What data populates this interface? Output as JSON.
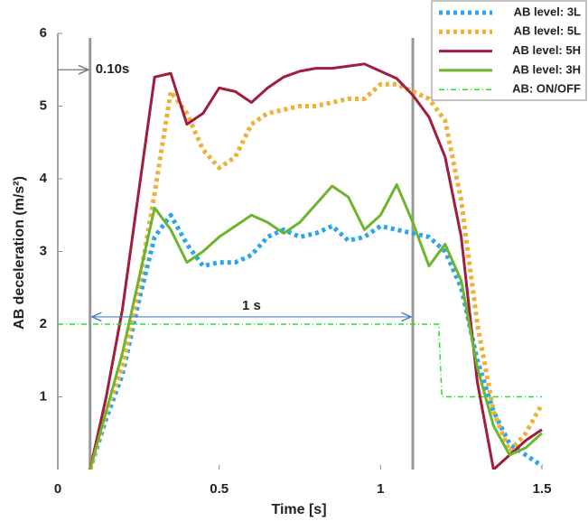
{
  "chart_data": {
    "type": "line",
    "xlabel": "Time [s]",
    "ylabel": "AB deceleration (m/s²)",
    "xlim": [
      0,
      1.5
    ],
    "ylim": [
      0,
      6
    ],
    "xticks": [
      0,
      0.5,
      1,
      1.5
    ],
    "yticks": [
      1,
      2,
      3,
      4,
      5,
      6
    ],
    "x": [
      0,
      0.05,
      0.1,
      0.15,
      0.2,
      0.25,
      0.3,
      0.35,
      0.4,
      0.45,
      0.5,
      0.55,
      0.6,
      0.65,
      0.7,
      0.75,
      0.8,
      0.85,
      0.9,
      0.95,
      1,
      1.05,
      1.1,
      1.15,
      1.2,
      1.25,
      1.3,
      1.35,
      1.4,
      1.45,
      1.5
    ],
    "series": [
      {
        "name": "AB level: 3L",
        "color": "#2ea5ea",
        "style": "dotted",
        "values": [
          0.1,
          null,
          0,
          0.7,
          1.3,
          2.3,
          3.2,
          3.5,
          3.1,
          2.8,
          2.85,
          2.85,
          2.95,
          3.2,
          3.3,
          3.2,
          3.25,
          3.35,
          3.15,
          3.2,
          3.35,
          3.3,
          3.25,
          3.2,
          3.0,
          2.5,
          1.5,
          0.8,
          0.35,
          0.2,
          0.05
        ]
      },
      {
        "name": "AB level: 5L",
        "color": "#eeb035",
        "style": "dotted",
        "values": [
          null,
          null,
          0,
          0.8,
          1.4,
          2.5,
          3.8,
          5.2,
          4.9,
          4.4,
          4.15,
          4.3,
          4.75,
          4.9,
          4.95,
          5.0,
          5.0,
          5.05,
          5.1,
          5.1,
          5.3,
          5.3,
          5.2,
          5.1,
          4.8,
          3.7,
          2.0,
          0.8,
          0.25,
          0.5,
          0.9
        ]
      },
      {
        "name": "AB level: 5H",
        "color": "#a11d3d",
        "style": "solid",
        "values": [
          null,
          null,
          0,
          1.0,
          2.2,
          3.8,
          5.4,
          5.45,
          4.75,
          4.9,
          5.25,
          5.2,
          5.05,
          5.25,
          5.4,
          5.48,
          5.52,
          5.52,
          5.55,
          5.58,
          5.48,
          5.38,
          5.15,
          4.85,
          4.3,
          3.2,
          1.2,
          0,
          0.2,
          0.4,
          0.55
        ]
      },
      {
        "name": "AB level: 3H",
        "color": "#6db52f",
        "style": "solid",
        "values": [
          null,
          null,
          0,
          0.8,
          1.6,
          2.6,
          3.6,
          3.3,
          2.85,
          3.0,
          3.2,
          3.35,
          3.5,
          3.4,
          3.25,
          3.4,
          3.65,
          3.9,
          3.75,
          3.3,
          3.5,
          3.92,
          3.4,
          2.8,
          3.1,
          2.6,
          1.4,
          0.6,
          0.2,
          0.3,
          0.5
        ]
      },
      {
        "name": "AB: ON/OFF",
        "color": "#22e622",
        "style": "dashdot",
        "x": [
          0,
          1.18,
          1.19,
          1.5
        ],
        "values": [
          2,
          2,
          1,
          1
        ]
      }
    ],
    "vlines": [
      0.1,
      1.1
    ],
    "annotations": [
      {
        "text": "0.10s",
        "x": 0.1,
        "y": 5.5
      },
      {
        "text": "1 s",
        "x": 0.6,
        "y": 2.15
      }
    ]
  }
}
